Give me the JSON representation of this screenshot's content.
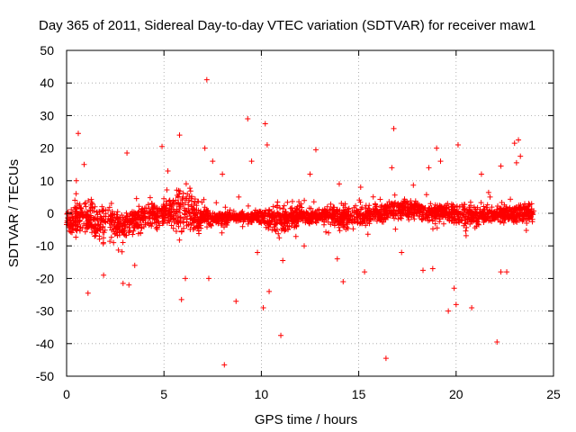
{
  "chart_data": {
    "type": "scatter",
    "title": "Day 365 of 2011, Sidereal Day-to-day VTEC variation (SDTVAR) for receiver maw1",
    "xlabel": "GPS time / hours",
    "ylabel": "SDTVAR / TECUs",
    "xlim": [
      0,
      25
    ],
    "ylim": [
      -50,
      50
    ],
    "xticks": [
      0,
      5,
      10,
      15,
      20,
      25
    ],
    "yticks": [
      -50,
      -40,
      -30,
      -20,
      -10,
      0,
      10,
      20,
      30,
      40,
      50
    ],
    "grid": true,
    "marker": "+",
    "color": "#ff0000",
    "time_range": [
      0,
      24
    ],
    "band_profile": {
      "x": [
        0,
        0.5,
        1,
        1.5,
        2,
        3,
        4,
        5,
        5.5,
        6,
        6.5,
        7,
        7.5,
        8,
        9,
        10,
        10.5,
        11,
        12,
        13,
        14,
        15,
        16,
        17,
        18,
        19,
        20,
        21,
        22,
        23,
        24
      ],
      "upper": [
        2,
        5,
        6,
        5,
        5,
        3,
        6,
        6,
        8,
        10,
        8,
        4,
        2,
        1,
        1,
        2,
        4,
        5,
        3,
        2,
        4,
        3,
        4,
        6,
        5,
        4,
        5,
        4,
        3,
        4,
        4
      ],
      "lower": [
        -7,
        -8,
        -9,
        -11,
        -12,
        -10,
        -7,
        -6,
        -7,
        -8,
        -9,
        -6,
        -5,
        -4,
        -3,
        -4,
        -7,
        -8,
        -5,
        -4,
        -6,
        -5,
        -4,
        -3,
        -3,
        -4,
        -5,
        -5,
        -4,
        -4,
        -4
      ]
    },
    "outliers": [
      {
        "x": 0.6,
        "y": 24.5
      },
      {
        "x": 0.9,
        "y": 15
      },
      {
        "x": 0.5,
        "y": 10
      },
      {
        "x": 1.1,
        "y": -24.5
      },
      {
        "x": 1.9,
        "y": -19
      },
      {
        "x": 2.9,
        "y": -21.5
      },
      {
        "x": 3.2,
        "y": -22
      },
      {
        "x": 3.1,
        "y": 18.5
      },
      {
        "x": 3.5,
        "y": -16
      },
      {
        "x": 4.9,
        "y": 20.5
      },
      {
        "x": 5.2,
        "y": 13
      },
      {
        "x": 5.8,
        "y": 24
      },
      {
        "x": 5.9,
        "y": -26.5
      },
      {
        "x": 6.1,
        "y": -20
      },
      {
        "x": 7.2,
        "y": 41
      },
      {
        "x": 7.1,
        "y": 20
      },
      {
        "x": 7.5,
        "y": 16
      },
      {
        "x": 7.3,
        "y": -20
      },
      {
        "x": 8.0,
        "y": 12
      },
      {
        "x": 8.1,
        "y": -46.5
      },
      {
        "x": 8.7,
        "y": -27
      },
      {
        "x": 9.3,
        "y": 29
      },
      {
        "x": 9.5,
        "y": 16
      },
      {
        "x": 10.2,
        "y": 27.5
      },
      {
        "x": 10.3,
        "y": 21
      },
      {
        "x": 10.1,
        "y": -29
      },
      {
        "x": 10.4,
        "y": -24
      },
      {
        "x": 9.8,
        "y": -12
      },
      {
        "x": 11.0,
        "y": -37.5
      },
      {
        "x": 11.1,
        "y": -14.5
      },
      {
        "x": 12.5,
        "y": 12
      },
      {
        "x": 12.2,
        "y": -10
      },
      {
        "x": 12.8,
        "y": 19.5
      },
      {
        "x": 13.9,
        "y": -14
      },
      {
        "x": 14.2,
        "y": -21
      },
      {
        "x": 14.0,
        "y": 9
      },
      {
        "x": 15.3,
        "y": -18
      },
      {
        "x": 15.1,
        "y": 8
      },
      {
        "x": 16.4,
        "y": -44.5
      },
      {
        "x": 16.8,
        "y": 26
      },
      {
        "x": 16.7,
        "y": 14
      },
      {
        "x": 17.2,
        "y": -12
      },
      {
        "x": 18.3,
        "y": -17.5
      },
      {
        "x": 18.6,
        "y": 14
      },
      {
        "x": 18.8,
        "y": -17
      },
      {
        "x": 19.0,
        "y": 20
      },
      {
        "x": 19.2,
        "y": 16
      },
      {
        "x": 19.6,
        "y": -30
      },
      {
        "x": 19.9,
        "y": -23
      },
      {
        "x": 20.0,
        "y": -28
      },
      {
        "x": 20.1,
        "y": 21
      },
      {
        "x": 20.8,
        "y": -29
      },
      {
        "x": 21.3,
        "y": 12
      },
      {
        "x": 22.1,
        "y": -39.5
      },
      {
        "x": 22.3,
        "y": -18
      },
      {
        "x": 22.6,
        "y": -18
      },
      {
        "x": 22.3,
        "y": 14.5
      },
      {
        "x": 23.0,
        "y": 21.5
      },
      {
        "x": 23.2,
        "y": 22.5
      },
      {
        "x": 23.3,
        "y": 17.5
      },
      {
        "x": 23.1,
        "y": 15.5
      }
    ]
  }
}
